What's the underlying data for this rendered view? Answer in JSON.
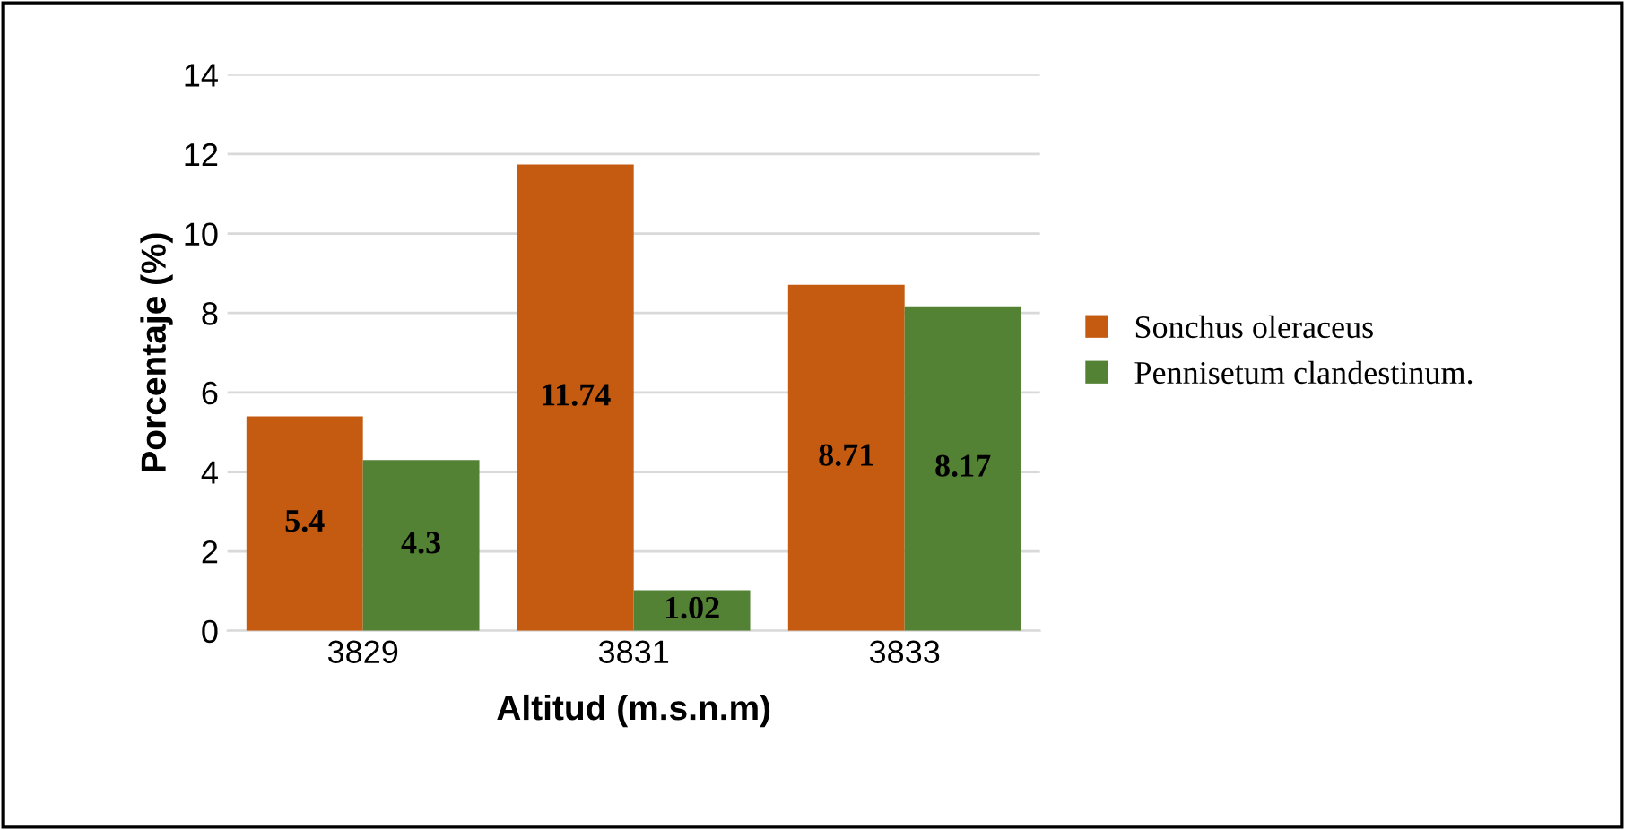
{
  "chart_data": {
    "type": "bar",
    "xlabel": "Altitud (m.s.n.m)",
    "ylabel": "Porcentaje (%)",
    "categories": [
      "3829",
      "3831",
      "3833"
    ],
    "series": [
      {
        "name": "Sonchus oleraceus",
        "color": "#c55a11",
        "values": [
          5.4,
          11.74,
          8.71
        ]
      },
      {
        "name": "Pennisetum clandestinum.",
        "color": "#548235",
        "values": [
          4.3,
          1.02,
          8.17
        ]
      }
    ],
    "ylim": [
      0,
      14
    ],
    "yticks": [
      0,
      2,
      4,
      6,
      8,
      10,
      12,
      14
    ],
    "grid": "y",
    "legend": "right",
    "data_labels": true
  }
}
